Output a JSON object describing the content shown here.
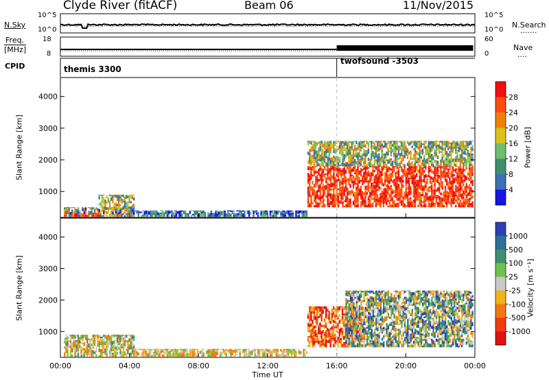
{
  "header": {
    "title": "Clyde River (fitACF)",
    "beam": "Beam 06",
    "date": "11/Nov/2015"
  },
  "noise_panel": {
    "left_label": "N.Sky",
    "left_ticks": [
      "10^5",
      "10^0"
    ],
    "right_ticks": [
      "10^5",
      "10^0"
    ],
    "right_label": "N.Search",
    "right_label_dots": "......."
  },
  "freq_panel": {
    "left_label_line1": "Freq.",
    "left_label_line2": "[MHz]",
    "left_ticks": [
      "18",
      "8"
    ],
    "right_ticks": [
      "60",
      "0"
    ],
    "right_label": "Nave",
    "right_label_dots": "...."
  },
  "cpid_panel": {
    "label": "CPID",
    "modes": [
      {
        "name": "themis 3300",
        "start_hour": 0
      },
      {
        "name": "twofsound -3503",
        "start_hour": 16
      }
    ]
  },
  "chart_data": [
    {
      "type": "heatmap",
      "panel": "power",
      "ylabel": "Slant Range [km]",
      "yticks": [
        1000,
        2000,
        3000,
        4000
      ],
      "ylim": [
        180,
        4600
      ],
      "xlim": [
        0,
        24
      ],
      "colorbar": {
        "label": "Power [dB]",
        "tick_labels": [
          "4",
          "8",
          "12",
          "16",
          "20",
          "24",
          "28"
        ],
        "colors": [
          "#1414e6",
          "#3c6fb4",
          "#3f8f6f",
          "#6fbd6f",
          "#d9c21a",
          "#f07f0a",
          "#ff4a14",
          "#f20f0f"
        ]
      },
      "regions": [
        {
          "t0": 0.2,
          "t1": 4.3,
          "r0": 200,
          "r1": 500,
          "level": "mixed-low"
        },
        {
          "t0": 0.8,
          "t1": 2.3,
          "r0": 200,
          "r1": 320,
          "level": "high"
        },
        {
          "t0": 2.2,
          "t1": 4.3,
          "r0": 420,
          "r1": 900,
          "level": "mid"
        },
        {
          "t0": 4.3,
          "t1": 14.3,
          "r0": 200,
          "r1": 400,
          "level": "low"
        },
        {
          "t0": 14.3,
          "t1": 23.9,
          "r0": 500,
          "r1": 1800,
          "level": "high"
        },
        {
          "t0": 14.3,
          "t1": 23.9,
          "r0": 1800,
          "r1": 2600,
          "level": "mid"
        }
      ]
    },
    {
      "type": "heatmap",
      "panel": "velocity",
      "ylabel": "Slant Range [km]",
      "yticks": [
        1000,
        2000,
        3000,
        4000
      ],
      "ylim": [
        180,
        4600
      ],
      "xlim": [
        0,
        24
      ],
      "xticks": [
        "00:00",
        "04:00",
        "08:00",
        "12:00",
        "16:00",
        "20:00",
        "00:00"
      ],
      "xlabel": "Time UT",
      "colorbar": {
        "label": "Velocity [m s⁻¹]",
        "tick_labels": [
          "1000",
          "500",
          "100",
          "25",
          "-25",
          "-100",
          "-500",
          "-1000"
        ],
        "colors": [
          "#2b3fb3",
          "#2e6e9a",
          "#3f8f6f",
          "#6ec24a",
          "#c8c8c8",
          "#f2b21f",
          "#f07a12",
          "#f03a12",
          "#e01010"
        ]
      },
      "regions": [
        {
          "t0": 0.2,
          "t1": 4.3,
          "r0": 200,
          "r1": 900,
          "level": "mixed"
        },
        {
          "t0": 4.3,
          "t1": 14.3,
          "r0": 200,
          "r1": 450,
          "level": "weak-negative"
        },
        {
          "t0": 14.3,
          "t1": 17.5,
          "r0": 500,
          "r1": 1800,
          "level": "negative"
        },
        {
          "t0": 16.5,
          "t1": 23.9,
          "r0": 500,
          "r1": 2300,
          "level": "positive"
        }
      ]
    }
  ],
  "colors": {
    "axis": "#000000",
    "dashed_marker": "#bdbdbd"
  }
}
